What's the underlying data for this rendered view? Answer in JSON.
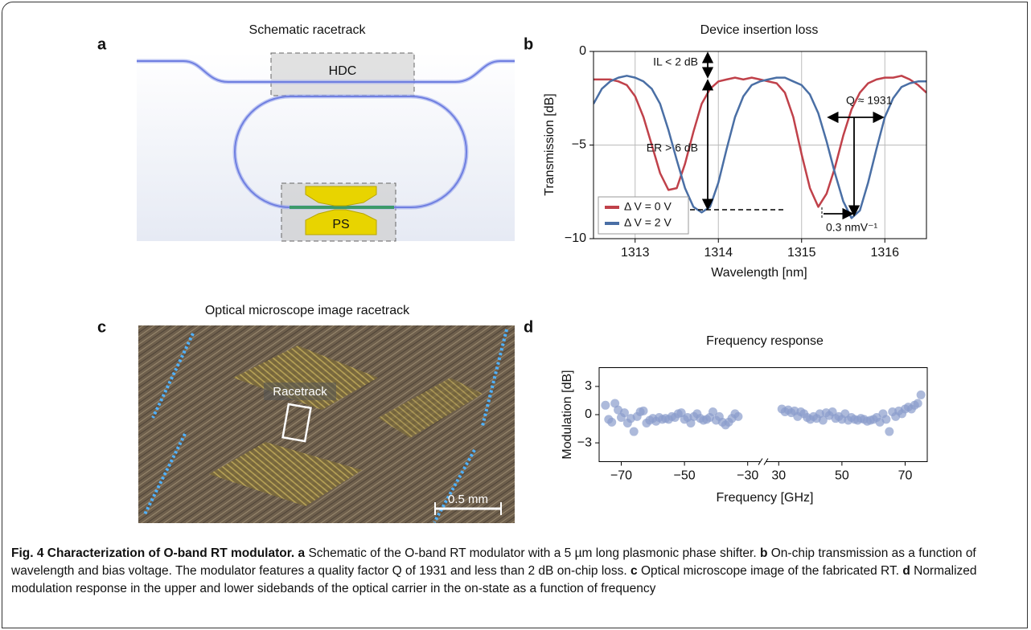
{
  "panel_a": {
    "label": "a",
    "title": "Schematic racetrack",
    "hdc": "HDC",
    "ps": "PS"
  },
  "panel_c": {
    "label": "c",
    "title": "Optical microscope image racetrack",
    "racetrack": "Racetrack",
    "scale_bar": "0.5 mm"
  },
  "chart_data": [
    {
      "type": "line",
      "label": "b",
      "title": "Device insertion loss",
      "xlabel": "Wavelength [nm]",
      "ylabel": "Transmission [dB]",
      "x": [
        1312.5,
        1312.6,
        1312.7,
        1312.8,
        1312.9,
        1313.0,
        1313.1,
        1313.2,
        1313.3,
        1313.4,
        1313.5,
        1313.6,
        1313.7,
        1313.8,
        1313.9,
        1314.0,
        1314.1,
        1314.2,
        1314.3,
        1314.4,
        1314.5,
        1314.6,
        1314.7,
        1314.8,
        1314.9,
        1315.0,
        1315.1,
        1315.2,
        1315.3,
        1315.4,
        1315.5,
        1315.6,
        1315.7,
        1315.8,
        1315.9,
        1316.0,
        1316.1,
        1316.2,
        1316.3,
        1316.4,
        1316.5
      ],
      "series": [
        {
          "name": "Δ V = 0 V",
          "color": "#c0414a",
          "values": [
            -1.5,
            -1.5,
            -1.5,
            -1.6,
            -1.8,
            -2.4,
            -3.5,
            -5.0,
            -6.5,
            -7.4,
            -7.3,
            -6.0,
            -4.3,
            -2.8,
            -2.0,
            -1.6,
            -1.5,
            -1.4,
            -1.5,
            -1.4,
            -1.5,
            -1.6,
            -1.7,
            -2.2,
            -3.5,
            -5.5,
            -7.3,
            -8.3,
            -7.6,
            -6.2,
            -4.5,
            -3.1,
            -2.2,
            -1.7,
            -1.5,
            -1.4,
            -1.4,
            -1.3,
            -1.5,
            -1.8,
            -2.2
          ]
        },
        {
          "name": "Δ V = 2 V",
          "color": "#4a6fa5",
          "values": [
            -2.8,
            -2.0,
            -1.6,
            -1.4,
            -1.3,
            -1.4,
            -1.6,
            -2.0,
            -2.8,
            -4.2,
            -5.8,
            -7.3,
            -8.3,
            -8.6,
            -8.3,
            -7.0,
            -5.2,
            -3.5,
            -2.4,
            -1.8,
            -1.6,
            -1.5,
            -1.4,
            -1.4,
            -1.6,
            -1.8,
            -2.3,
            -3.3,
            -4.8,
            -6.5,
            -8.0,
            -8.9,
            -8.5,
            -7.0,
            -5.2,
            -3.5,
            -2.5,
            -1.9,
            -1.7,
            -1.6,
            -1.6
          ]
        }
      ],
      "xlim": [
        1312.5,
        1316.5
      ],
      "xticks": [
        1313,
        1314,
        1315,
        1316
      ],
      "ylim": [
        -10,
        0
      ],
      "yticks": [
        {
          "value": -10,
          "label": "−10"
        },
        {
          "value": -5,
          "label": "−5"
        },
        0
      ],
      "grid": true,
      "legend": "lower left",
      "annotations": [
        "IL < 2 dB",
        "ER > 6 dB",
        "Q ≈ 1931",
        "0.3 nmV⁻¹"
      ]
    },
    {
      "type": "scatter",
      "label": "d",
      "title": "Frequency response",
      "xlabel": "Frequency [GHz]",
      "ylabel": "Modulation [dB]",
      "color": "#8a9ccc",
      "x": [
        -75,
        -74,
        -73,
        -72,
        -71,
        -70,
        -69,
        -68,
        -67,
        -66,
        -65,
        -64,
        -63,
        -62,
        -61,
        -60,
        -59,
        -58,
        -57,
        -56,
        -55,
        -54,
        -53,
        -52,
        -51,
        -50,
        -49,
        -48,
        -47,
        -46,
        -45,
        -44,
        -43,
        -42,
        -41,
        -40,
        -39,
        -38,
        -37,
        -36,
        -35,
        -34,
        -33,
        31,
        32,
        33,
        34,
        35,
        36,
        37,
        38,
        39,
        40,
        41,
        42,
        43,
        44,
        45,
        46,
        47,
        48,
        49,
        50,
        51,
        52,
        53,
        54,
        55,
        56,
        57,
        58,
        59,
        60,
        61,
        62,
        63,
        64,
        65,
        66,
        67,
        68,
        69,
        70,
        71,
        72,
        73,
        74,
        75
      ],
      "values": [
        1.0,
        -0.5,
        -0.8,
        1.2,
        0.5,
        -0.3,
        0.2,
        -0.9,
        -0.4,
        -1.8,
        -0.2,
        0.3,
        0.4,
        -0.9,
        -0.6,
        -0.4,
        -0.7,
        -0.3,
        -0.5,
        -0.4,
        -0.5,
        -0.2,
        -0.3,
        0.1,
        0.2,
        -0.5,
        -0.3,
        -0.9,
        -0.2,
        0.1,
        -0.4,
        -0.6,
        -0.5,
        -0.3,
        0.3,
        -0.6,
        -0.2,
        -0.8,
        -1.1,
        -0.8,
        -0.4,
        0.1,
        -0.2,
        0.6,
        0.3,
        0.5,
        0.2,
        0.4,
        -0.2,
        0.3,
        0.1,
        -0.3,
        -0.5,
        -0.2,
        -0.4,
        0.1,
        -0.6,
        0.2,
        -0.1,
        0.3,
        -0.4,
        -0.2,
        -0.5,
        0.1,
        -0.6,
        -0.3,
        -0.5,
        -0.6,
        -0.4,
        -0.5,
        -0.7,
        -0.6,
        -0.5,
        -0.3,
        -0.8,
        0.1,
        -0.5,
        -1.8,
        0.3,
        -0.2,
        0.4,
        0.1,
        0.6,
        0.8,
        0.6,
        1.0,
        1.2,
        2.1
      ],
      "xlim": [
        [
          -77,
          -27
        ],
        [
          27,
          77
        ]
      ],
      "xticks": [
        {
          "value": -70,
          "label": "−70"
        },
        {
          "value": -50,
          "label": "−50"
        },
        {
          "value": -30,
          "label": "−30"
        },
        30,
        50,
        70
      ],
      "ylim": [
        -5,
        5
      ],
      "yticks": [
        3,
        0,
        {
          "value": -3,
          "label": "−3"
        }
      ],
      "grid": false
    }
  ],
  "caption": {
    "title": "Fig. 4 Characterization of O-band RT modulator.",
    "items": [
      {
        "label": "a",
        "text": "Schematic of the O-band RT modulator with a 5 µm long plasmonic phase shifter."
      },
      {
        "label": "b",
        "text": "On-chip transmission as a function of wavelength and bias voltage. The modulator features a quality factor Q of 1931 and less than 2 dB on-chip loss."
      },
      {
        "label": "c",
        "text": "Optical microscope image of the fabricated RT."
      },
      {
        "label": "d",
        "text": "Normalized modulation response in the upper and lower sidebands of the optical carrier in the on-state as a function of frequency"
      }
    ]
  }
}
